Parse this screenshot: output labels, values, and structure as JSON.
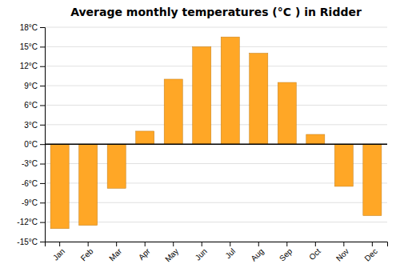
{
  "chart_data": {
    "type": "bar",
    "title": "Average monthly temperatures (°C ) in Ridder",
    "categories": [
      "Jan",
      "Feb",
      "Mar",
      "Apr",
      "May",
      "Jun",
      "Jul",
      "Aug",
      "Sep",
      "Oct",
      "Nov",
      "Dec"
    ],
    "values": [
      -13,
      -12.5,
      -6.8,
      2,
      10,
      15,
      16.5,
      14,
      9.5,
      1.5,
      -6.5,
      -11
    ],
    "color": "#FFA726",
    "ylim": [
      -15,
      18
    ],
    "yticks": [
      {
        "value": -15,
        "label": "-15°C"
      },
      {
        "value": -12,
        "label": "-12°C"
      },
      {
        "value": -9,
        "label": "-9°C"
      },
      {
        "value": -6,
        "label": "-6°C"
      },
      {
        "value": -3,
        "label": "-3°C"
      },
      {
        "value": 0,
        "label": "0°C"
      },
      {
        "value": 3,
        "label": "3°C"
      },
      {
        "value": 6,
        "label": "6°C"
      },
      {
        "value": 9,
        "label": "9°C"
      },
      {
        "value": 12,
        "label": "12°C"
      },
      {
        "value": 15,
        "label": "15°C"
      },
      {
        "value": 18,
        "label": "18°C"
      }
    ],
    "grid": true
  }
}
